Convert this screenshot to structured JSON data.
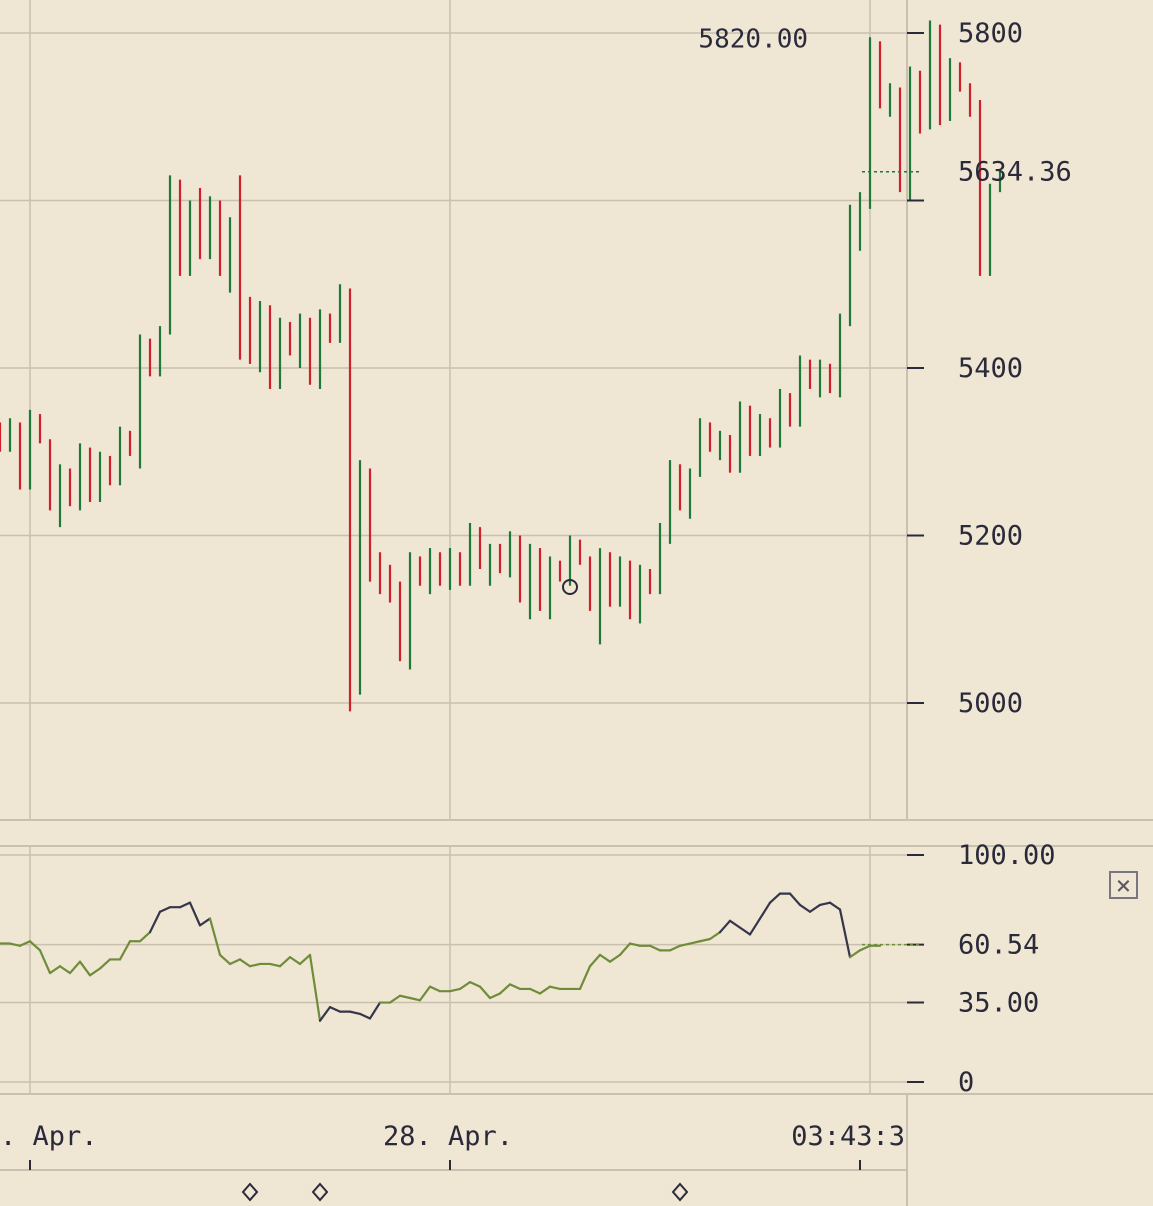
{
  "chart_data": [
    {
      "type": "ohlc",
      "price_axis": {
        "ticks": [
          "5800",
          "5400",
          "5200",
          "5000"
        ],
        "tick_values": [
          5800,
          5400,
          5200,
          5000
        ],
        "unlabeled_tick_values": [
          5600
        ],
        "current_price": 5634.36,
        "current_price_label": "5634.36",
        "high_annotation": "5820.00",
        "high_value": 5820
      },
      "colors": {
        "up": "#1f7a3a",
        "down": "#d0202c",
        "grid": "#c9c0b0"
      },
      "bars": [
        [
          5330,
          5335,
          5300,
          5305
        ],
        [
          5305,
          5340,
          5300,
          5335
        ],
        [
          5335,
          5335,
          5255,
          5260
        ],
        [
          5260,
          5350,
          5255,
          5345
        ],
        [
          5345,
          5345,
          5310,
          5315
        ],
        [
          5315,
          5315,
          5230,
          5235
        ],
        [
          5235,
          5285,
          5210,
          5280
        ],
        [
          5280,
          5280,
          5235,
          5240
        ],
        [
          5240,
          5310,
          5230,
          5305
        ],
        [
          5305,
          5305,
          5240,
          5245
        ],
        [
          5245,
          5300,
          5240,
          5295
        ],
        [
          5295,
          5295,
          5260,
          5265
        ],
        [
          5265,
          5330,
          5260,
          5325
        ],
        [
          5325,
          5325,
          5295,
          5300
        ],
        [
          5300,
          5440,
          5280,
          5435
        ],
        [
          5435,
          5435,
          5390,
          5395
        ],
        [
          5395,
          5450,
          5390,
          5445
        ],
        [
          5445,
          5630,
          5440,
          5625
        ],
        [
          5625,
          5625,
          5510,
          5515
        ],
        [
          5515,
          5600,
          5510,
          5595
        ],
        [
          5595,
          5615,
          5530,
          5540
        ],
        [
          5540,
          5605,
          5530,
          5600
        ],
        [
          5600,
          5600,
          5510,
          5515
        ],
        [
          5515,
          5580,
          5490,
          5575
        ],
        [
          5575,
          5630,
          5410,
          5415
        ],
        [
          5415,
          5485,
          5405,
          5410
        ],
        [
          5410,
          5480,
          5395,
          5475
        ],
        [
          5475,
          5475,
          5375,
          5380
        ],
        [
          5380,
          5460,
          5375,
          5455
        ],
        [
          5455,
          5455,
          5415,
          5420
        ],
        [
          5420,
          5465,
          5400,
          5460
        ],
        [
          5460,
          5460,
          5380,
          5385
        ],
        [
          5385,
          5470,
          5375,
          5465
        ],
        [
          5465,
          5465,
          5430,
          5435
        ],
        [
          5435,
          5500,
          5430,
          5495
        ],
        [
          5495,
          5495,
          4990,
          5020
        ],
        [
          5020,
          5290,
          5010,
          5280
        ],
        [
          5280,
          5280,
          5145,
          5150
        ],
        [
          5150,
          5180,
          5130,
          5135
        ],
        [
          5135,
          5165,
          5120,
          5125
        ],
        [
          5125,
          5145,
          5050,
          5055
        ],
        [
          5055,
          5180,
          5040,
          5175
        ],
        [
          5175,
          5175,
          5140,
          5145
        ],
        [
          5145,
          5185,
          5130,
          5180
        ],
        [
          5180,
          5180,
          5140,
          5145
        ],
        [
          5145,
          5185,
          5135,
          5180
        ],
        [
          5180,
          5180,
          5140,
          5145
        ],
        [
          5145,
          5215,
          5140,
          5210
        ],
        [
          5210,
          5210,
          5160,
          5165
        ],
        [
          5165,
          5190,
          5140,
          5185
        ],
        [
          5185,
          5190,
          5155,
          5160
        ],
        [
          5160,
          5205,
          5150,
          5200
        ],
        [
          5200,
          5200,
          5120,
          5125
        ],
        [
          5125,
          5190,
          5100,
          5185
        ],
        [
          5185,
          5185,
          5110,
          5115
        ],
        [
          5115,
          5175,
          5100,
          5170
        ],
        [
          5170,
          5170,
          5145,
          5150
        ],
        [
          5150,
          5200,
          5140,
          5195
        ],
        [
          5195,
          5195,
          5165,
          5170
        ],
        [
          5170,
          5175,
          5110,
          5115
        ],
        [
          5115,
          5185,
          5070,
          5180
        ],
        [
          5180,
          5180,
          5115,
          5120
        ],
        [
          5120,
          5175,
          5115,
          5170
        ],
        [
          5170,
          5170,
          5100,
          5105
        ],
        [
          5105,
          5165,
          5095,
          5160
        ],
        [
          5160,
          5160,
          5130,
          5135
        ],
        [
          5135,
          5215,
          5130,
          5210
        ],
        [
          5210,
          5290,
          5190,
          5285
        ],
        [
          5285,
          5285,
          5230,
          5235
        ],
        [
          5235,
          5280,
          5220,
          5275
        ],
        [
          5275,
          5340,
          5270,
          5335
        ],
        [
          5335,
          5335,
          5300,
          5305
        ],
        [
          5305,
          5325,
          5290,
          5320
        ],
        [
          5320,
          5320,
          5275,
          5280
        ],
        [
          5280,
          5360,
          5275,
          5355
        ],
        [
          5355,
          5355,
          5295,
          5300
        ],
        [
          5300,
          5345,
          5295,
          5340
        ],
        [
          5340,
          5340,
          5305,
          5310
        ],
        [
          5310,
          5375,
          5305,
          5370
        ],
        [
          5370,
          5370,
          5330,
          5335
        ],
        [
          5335,
          5415,
          5330,
          5410
        ],
        [
          5410,
          5410,
          5375,
          5380
        ],
        [
          5380,
          5410,
          5365,
          5405
        ],
        [
          5405,
          5405,
          5370,
          5375
        ],
        [
          5375,
          5465,
          5365,
          5460
        ],
        [
          5460,
          5595,
          5450,
          5590
        ],
        [
          5590,
          5610,
          5540,
          5600
        ],
        [
          5600,
          5795,
          5590,
          5790
        ],
        [
          5790,
          5790,
          5710,
          5715
        ],
        [
          5715,
          5740,
          5700,
          5735
        ],
        [
          5735,
          5735,
          5610,
          5620
        ],
        [
          5620,
          5760,
          5600,
          5755
        ],
        [
          5755,
          5755,
          5680,
          5690
        ],
        [
          5690,
          5815,
          5685,
          5810
        ],
        [
          5810,
          5810,
          5690,
          5700
        ],
        [
          5700,
          5770,
          5695,
          5765
        ],
        [
          5765,
          5765,
          5730,
          5735
        ],
        [
          5735,
          5740,
          5700,
          5720
        ],
        [
          5720,
          5720,
          5510,
          5515
        ],
        [
          5515,
          5620,
          5510,
          5615
        ],
        [
          5615,
          5635,
          5610,
          5634
        ]
      ]
    },
    {
      "type": "line",
      "indicator": "oscillator",
      "y_axis": {
        "ticks": [
          "100.00",
          "35.00",
          "0"
        ],
        "tick_values": [
          100,
          35,
          0
        ],
        "unlabeled_tick_values": [
          60.54
        ],
        "current_label": "60.54",
        "current_value": 60.54
      },
      "colors": {
        "normal": "#6f8c3a",
        "extreme": "#35364a"
      },
      "thresholds": {
        "upper": 65,
        "lower": 35
      },
      "values": [
        61,
        61,
        60,
        62,
        58,
        48,
        51,
        48,
        53,
        47,
        50,
        54,
        54,
        62,
        62,
        66,
        75,
        77,
        77,
        79,
        69,
        72,
        56,
        52,
        54,
        51,
        52,
        52,
        51,
        55,
        52,
        56,
        27,
        33,
        31,
        31,
        30,
        28,
        35,
        35,
        38,
        37,
        36,
        42,
        40,
        40,
        41,
        44,
        42,
        37,
        39,
        43,
        41,
        41,
        39,
        42,
        41,
        41,
        41,
        51,
        56,
        53,
        56,
        61,
        60,
        60,
        58,
        58,
        60,
        61,
        62,
        63,
        66,
        71,
        68,
        65,
        72,
        79,
        83,
        83,
        78,
        75,
        78,
        79,
        76,
        55,
        58,
        60,
        60
      ]
    },
    {
      "type": "axis",
      "x_axis": {
        "labels": [
          ". Apr.",
          "28. Apr.",
          "03:43:3"
        ]
      }
    }
  ],
  "controls": {
    "close_glyph": "×"
  }
}
